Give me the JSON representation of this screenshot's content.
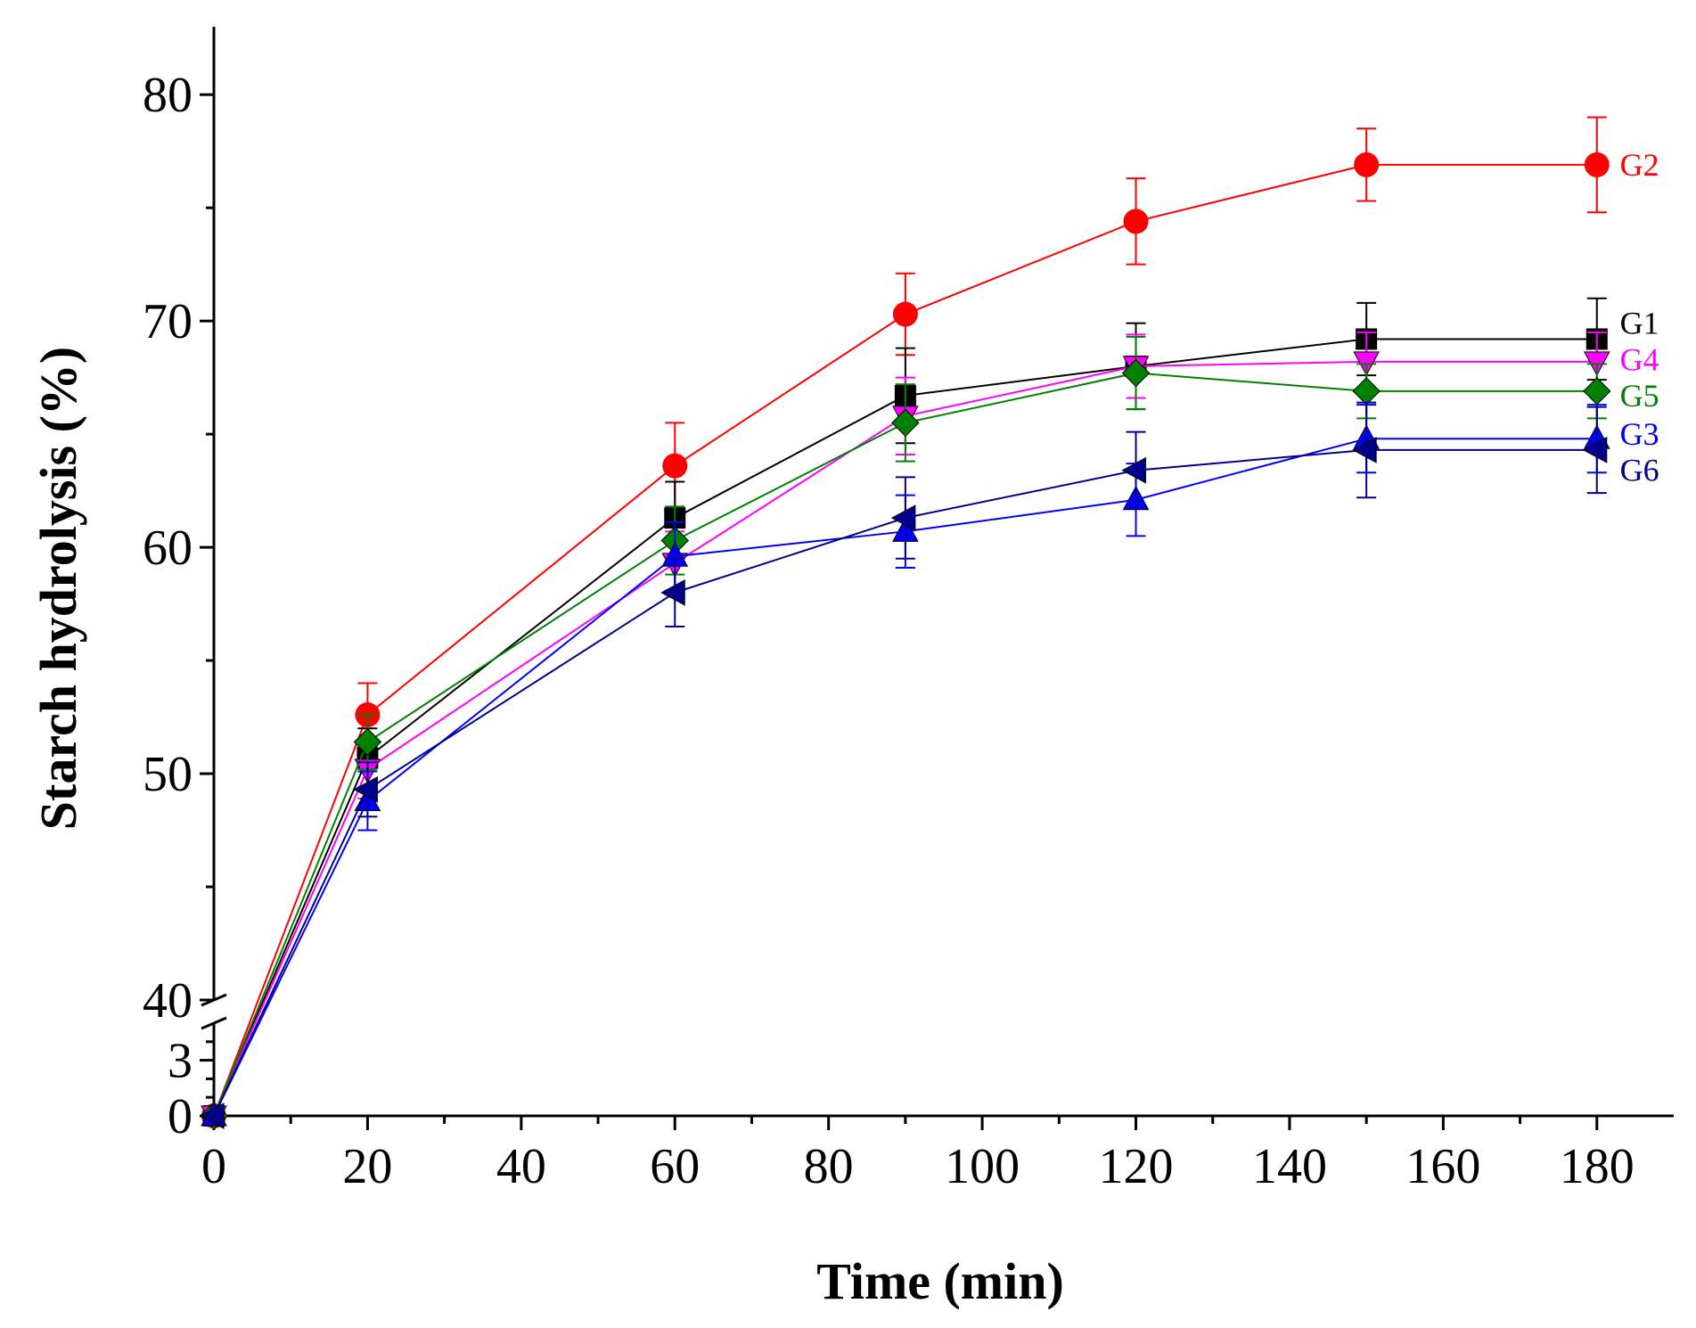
{
  "chart_data": {
    "type": "line",
    "title": "",
    "xlabel": "Time (min)",
    "ylabel": "Starch hydrolysis (%)",
    "xlim": [
      0,
      190
    ],
    "x_ticks": [
      0,
      20,
      40,
      60,
      80,
      100,
      120,
      140,
      160,
      180
    ],
    "x_tick_labels": [
      "0",
      "20",
      "40",
      "60",
      "80",
      "100",
      "120",
      "140",
      "160",
      "180"
    ],
    "y_axis_break": {
      "lower_segment": [
        0,
        5
      ],
      "upper_segment": [
        40,
        83
      ]
    },
    "y_ticks_lower": [
      0,
      3
    ],
    "y_tick_labels_lower": [
      "0",
      "3"
    ],
    "y_ticks_upper": [
      40,
      50,
      60,
      70,
      80
    ],
    "y_tick_labels_upper": [
      "40",
      "50",
      "60",
      "70",
      "80"
    ],
    "grid": false,
    "legend": "series labels placed at right end of each line",
    "x": [
      0,
      20,
      60,
      90,
      120,
      150,
      180
    ],
    "series": [
      {
        "name": "G2",
        "color": "#ff0000",
        "marker": "circle",
        "values": [
          0,
          52.6,
          63.6,
          70.3,
          74.4,
          76.9,
          76.9
        ],
        "errors": [
          0,
          1.4,
          1.9,
          1.8,
          1.9,
          1.6,
          2.1
        ]
      },
      {
        "name": "G1",
        "color": "#000000",
        "marker": "square",
        "values": [
          0,
          50.7,
          61.3,
          66.7,
          68.0,
          69.2,
          69.2
        ],
        "errors": [
          0,
          1.3,
          1.6,
          2.1,
          1.9,
          1.6,
          1.8
        ]
      },
      {
        "name": "G4",
        "color": "#ff00ff",
        "marker": "triangle-down",
        "values": [
          0,
          50.2,
          59.3,
          65.8,
          68.0,
          68.2,
          68.2
        ],
        "errors": [
          0,
          1.3,
          1.4,
          1.7,
          1.4,
          1.3,
          1.3
        ]
      },
      {
        "name": "G5",
        "color": "#008000",
        "marker": "diamond",
        "values": [
          0,
          51.4,
          60.3,
          65.5,
          67.7,
          66.9,
          66.9
        ],
        "errors": [
          0,
          1.2,
          1.5,
          1.7,
          1.6,
          1.2,
          1.2
        ]
      },
      {
        "name": "G3",
        "color": "#0000ff",
        "marker": "triangle-up",
        "values": [
          0,
          48.8,
          59.6,
          60.7,
          62.1,
          64.8,
          64.8
        ],
        "errors": [
          0,
          1.3,
          1.5,
          1.6,
          1.6,
          1.5,
          1.5
        ]
      },
      {
        "name": "G6",
        "color": "#00008b",
        "marker": "triangle-left",
        "values": [
          0,
          49.3,
          58.0,
          61.3,
          63.4,
          64.3,
          64.3
        ],
        "errors": [
          0,
          1.2,
          1.5,
          1.8,
          1.7,
          2.1,
          1.9
        ]
      }
    ]
  }
}
